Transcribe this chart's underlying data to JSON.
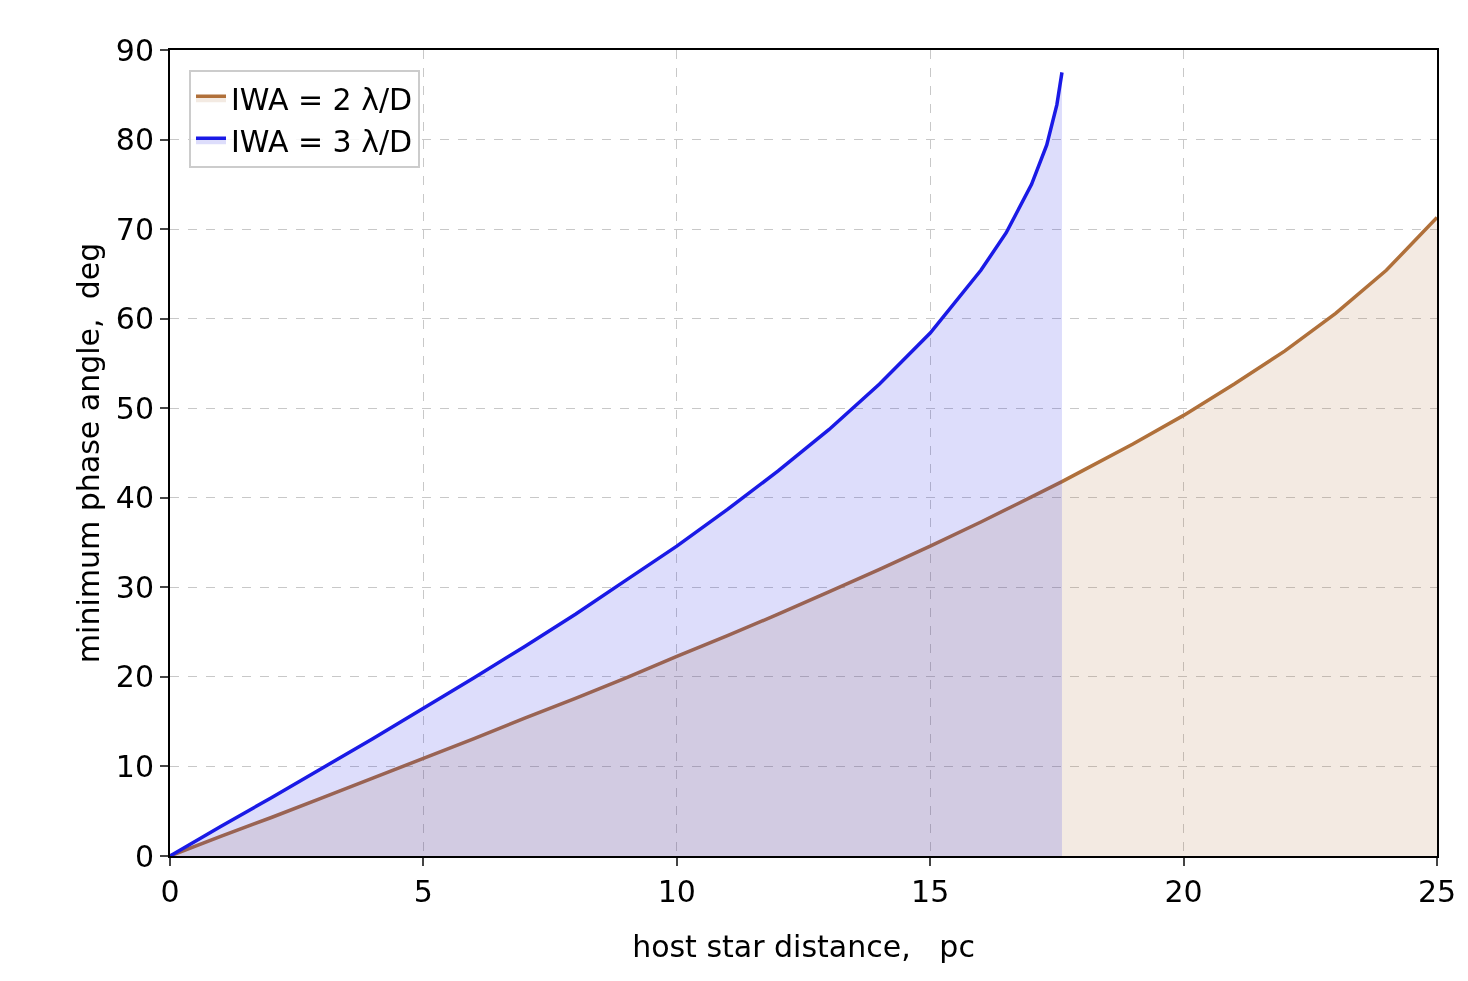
{
  "chart_data": {
    "type": "area",
    "xlabel": "host star distance,   pc",
    "ylabel": "minimum phase angle,  deg",
    "xlim": [
      0,
      25
    ],
    "xticks": [
      0,
      5,
      10,
      15,
      20,
      25
    ],
    "ylim": [
      0,
      90
    ],
    "yticks": [
      0,
      10,
      20,
      30,
      40,
      50,
      60,
      70,
      80,
      90
    ],
    "grid": true,
    "legend": "top left",
    "line_style": "solid",
    "series": [
      {
        "name": "IWA = 2 λ/D",
        "color": "#b0703a",
        "x": [
          0,
          1,
          2,
          3,
          4,
          5,
          6,
          7,
          8,
          9,
          10,
          11,
          12,
          13,
          14,
          15,
          16,
          17,
          17.6,
          18,
          19,
          20,
          21,
          22,
          23,
          24,
          25
        ],
        "values": [
          0,
          2.2,
          4.3,
          6.5,
          8.7,
          10.9,
          13.1,
          15.4,
          17.6,
          19.9,
          22.3,
          24.6,
          27.0,
          29.5,
          32.0,
          34.6,
          37.3,
          40.1,
          41.8,
          43.0,
          46.0,
          49.2,
          52.7,
          56.4,
          60.6,
          65.4,
          71.3
        ]
      },
      {
        "name": "IWA = 3 λ/D",
        "color": "#1a1ae6",
        "x": [
          0,
          1,
          2,
          3,
          4,
          5,
          6,
          7,
          8,
          9,
          10,
          11,
          12,
          13,
          14,
          15,
          16,
          16.5,
          17,
          17.3,
          17.5,
          17.6
        ],
        "values": [
          0,
          3.3,
          6.5,
          9.8,
          13.1,
          16.5,
          19.9,
          23.4,
          27.0,
          30.8,
          34.6,
          38.7,
          43.0,
          47.6,
          52.7,
          58.4,
          65.4,
          69.6,
          75.0,
          79.4,
          83.9,
          87.5
        ]
      }
    ]
  }
}
